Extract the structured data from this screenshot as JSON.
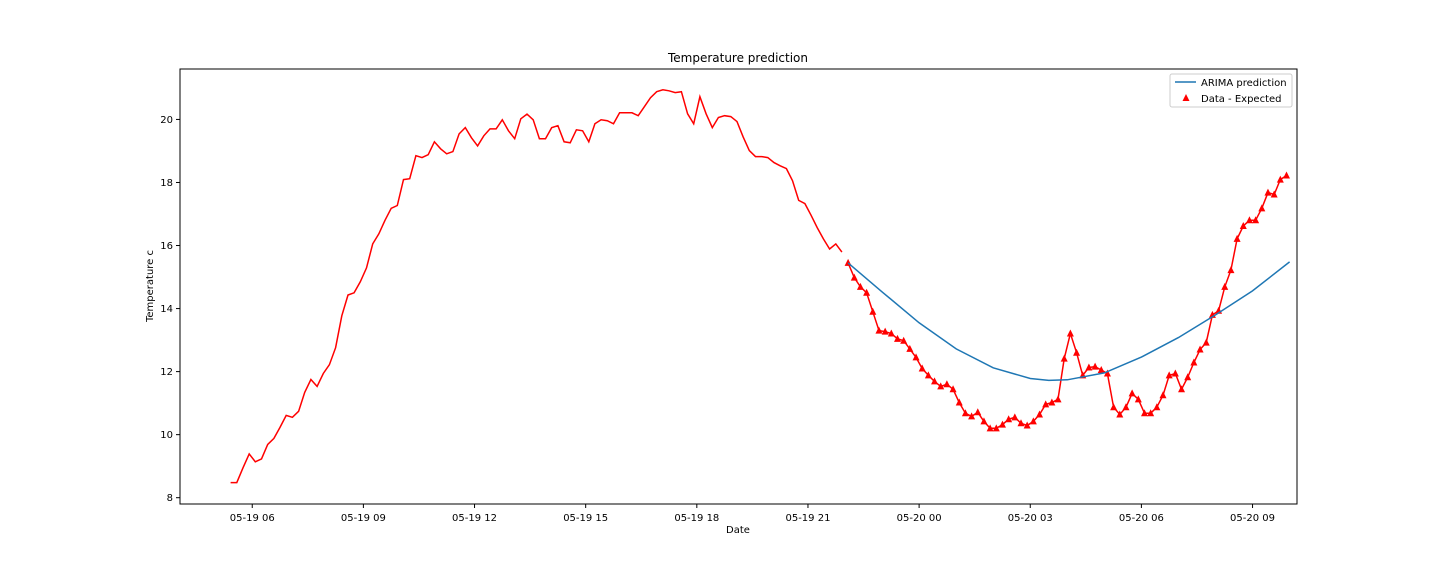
{
  "chart_data": {
    "type": "line",
    "title": "Temperature prediction",
    "xlabel": "Date",
    "ylabel": "Temperature c",
    "xlim": [
      "2024-05-19 04:03",
      "2024-05-20 10:12"
    ],
    "ylim": [
      7.8,
      21.6
    ],
    "x_ticks": [
      {
        "value": "2024-05-19 06:00",
        "label": "05-19 06"
      },
      {
        "value": "2024-05-19 09:00",
        "label": "05-19 09"
      },
      {
        "value": "2024-05-19 12:00",
        "label": "05-19 12"
      },
      {
        "value": "2024-05-19 15:00",
        "label": "05-19 15"
      },
      {
        "value": "2024-05-19 18:00",
        "label": "05-19 18"
      },
      {
        "value": "2024-05-19 21:00",
        "label": "05-19 21"
      },
      {
        "value": "2024-05-20 00:00",
        "label": "05-20 00"
      },
      {
        "value": "2024-05-20 03:00",
        "label": "05-20 03"
      },
      {
        "value": "2024-05-20 06:00",
        "label": "05-20 06"
      },
      {
        "value": "2024-05-20 09:00",
        "label": "05-20 09"
      }
    ],
    "y_ticks": [
      8,
      10,
      12,
      14,
      16,
      18,
      20
    ],
    "grid": false,
    "legend_position": "top-right",
    "series": [
      {
        "name": "",
        "kind": "line",
        "color": "#ff0000",
        "points": [
          [
            "2024-05-19 05:25",
            8.48
          ],
          [
            "2024-05-19 05:35",
            8.48
          ],
          [
            "2024-05-19 05:45",
            8.95
          ],
          [
            "2024-05-19 05:55",
            9.39
          ],
          [
            "2024-05-19 06:05",
            9.14
          ],
          [
            "2024-05-19 06:15",
            9.23
          ],
          [
            "2024-05-19 06:25",
            9.69
          ],
          [
            "2024-05-19 06:35",
            9.88
          ],
          [
            "2024-05-19 06:45",
            10.23
          ],
          [
            "2024-05-19 06:55",
            10.61
          ],
          [
            "2024-05-19 07:05",
            10.55
          ],
          [
            "2024-05-19 07:15",
            10.74
          ],
          [
            "2024-05-19 07:25",
            11.34
          ],
          [
            "2024-05-19 07:35",
            11.75
          ],
          [
            "2024-05-19 07:45",
            11.53
          ],
          [
            "2024-05-19 07:55",
            11.94
          ],
          [
            "2024-05-19 08:05",
            12.22
          ],
          [
            "2024-05-19 08:15",
            12.76
          ],
          [
            "2024-05-19 08:25",
            13.77
          ],
          [
            "2024-05-19 08:35",
            14.43
          ],
          [
            "2024-05-19 08:45",
            14.5
          ],
          [
            "2024-05-19 08:55",
            14.85
          ],
          [
            "2024-05-19 09:05",
            15.29
          ],
          [
            "2024-05-19 09:15",
            16.05
          ],
          [
            "2024-05-19 09:25",
            16.37
          ],
          [
            "2024-05-19 09:35",
            16.8
          ],
          [
            "2024-05-19 09:45",
            17.18
          ],
          [
            "2024-05-19 09:55",
            17.27
          ],
          [
            "2024-05-19 10:05",
            18.09
          ],
          [
            "2024-05-19 10:15",
            18.12
          ],
          [
            "2024-05-19 10:25",
            18.85
          ],
          [
            "2024-05-19 10:35",
            18.79
          ],
          [
            "2024-05-19 10:45",
            18.88
          ],
          [
            "2024-05-19 10:55",
            19.29
          ],
          [
            "2024-05-19 11:05",
            19.07
          ],
          [
            "2024-05-19 11:15",
            18.91
          ],
          [
            "2024-05-19 11:25",
            18.98
          ],
          [
            "2024-05-19 11:35",
            19.54
          ],
          [
            "2024-05-19 11:45",
            19.74
          ],
          [
            "2024-05-19 11:55",
            19.42
          ],
          [
            "2024-05-19 12:05",
            19.16
          ],
          [
            "2024-05-19 12:15",
            19.48
          ],
          [
            "2024-05-19 12:25",
            19.7
          ],
          [
            "2024-05-19 12:35",
            19.7
          ],
          [
            "2024-05-19 12:45",
            19.99
          ],
          [
            "2024-05-19 12:55",
            19.64
          ],
          [
            "2024-05-19 13:05",
            19.39
          ],
          [
            "2024-05-19 13:15",
            20.02
          ],
          [
            "2024-05-19 13:25",
            20.17
          ],
          [
            "2024-05-19 13:35",
            19.99
          ],
          [
            "2024-05-19 13:45",
            19.39
          ],
          [
            "2024-05-19 13:55",
            19.39
          ],
          [
            "2024-05-19 14:05",
            19.74
          ],
          [
            "2024-05-19 14:15",
            19.8
          ],
          [
            "2024-05-19 14:25",
            19.29
          ],
          [
            "2024-05-19 14:35",
            19.26
          ],
          [
            "2024-05-19 14:45",
            19.67
          ],
          [
            "2024-05-19 14:55",
            19.64
          ],
          [
            "2024-05-19 15:05",
            19.29
          ],
          [
            "2024-05-19 15:15",
            19.86
          ],
          [
            "2024-05-19 15:25",
            19.99
          ],
          [
            "2024-05-19 15:35",
            19.96
          ],
          [
            "2024-05-19 15:45",
            19.86
          ],
          [
            "2024-05-19 15:55",
            20.21
          ],
          [
            "2024-05-19 16:05",
            20.21
          ],
          [
            "2024-05-19 16:15",
            20.21
          ],
          [
            "2024-05-19 16:25",
            20.12
          ],
          [
            "2024-05-19 16:35",
            20.4
          ],
          [
            "2024-05-19 16:45",
            20.69
          ],
          [
            "2024-05-19 16:55",
            20.88
          ],
          [
            "2024-05-19 17:05",
            20.94
          ],
          [
            "2024-05-19 17:15",
            20.91
          ],
          [
            "2024-05-19 17:25",
            20.85
          ],
          [
            "2024-05-19 17:35",
            20.88
          ],
          [
            "2024-05-19 17:45",
            20.18
          ],
          [
            "2024-05-19 17:55",
            19.86
          ],
          [
            "2024-05-19 18:05",
            20.72
          ],
          [
            "2024-05-19 18:15",
            20.18
          ],
          [
            "2024-05-19 18:25",
            19.74
          ],
          [
            "2024-05-19 18:35",
            20.06
          ],
          [
            "2024-05-19 18:45",
            20.12
          ],
          [
            "2024-05-19 18:55",
            20.09
          ],
          [
            "2024-05-19 19:05",
            19.93
          ],
          [
            "2024-05-19 19:15",
            19.45
          ],
          [
            "2024-05-19 19:25",
            19.01
          ],
          [
            "2024-05-19 19:35",
            18.82
          ],
          [
            "2024-05-19 19:45",
            18.82
          ],
          [
            "2024-05-19 19:55",
            18.79
          ],
          [
            "2024-05-19 20:05",
            18.63
          ],
          [
            "2024-05-19 20:15",
            18.53
          ],
          [
            "2024-05-19 20:25",
            18.44
          ],
          [
            "2024-05-19 20:35",
            18.06
          ],
          [
            "2024-05-19 20:45",
            17.43
          ],
          [
            "2024-05-19 20:55",
            17.33
          ],
          [
            "2024-05-19 21:05",
            16.96
          ],
          [
            "2024-05-19 21:15",
            16.57
          ],
          [
            "2024-05-19 21:25",
            16.21
          ],
          [
            "2024-05-19 21:35",
            15.89
          ],
          [
            "2024-05-19 21:45",
            16.05
          ],
          [
            "2024-05-19 21:55",
            15.79
          ]
        ]
      },
      {
        "name": "Data - Expected",
        "kind": "line+markers",
        "color": "#ff0000",
        "marker": "triangle",
        "points": [
          [
            "2024-05-19 22:05",
            15.45
          ],
          [
            "2024-05-19 22:15",
            14.98
          ],
          [
            "2024-05-19 22:25",
            14.69
          ],
          [
            "2024-05-19 22:35",
            14.5
          ],
          [
            "2024-05-19 22:45",
            13.9
          ],
          [
            "2024-05-19 22:55",
            13.3
          ],
          [
            "2024-05-19 23:05",
            13.27
          ],
          [
            "2024-05-19 23:15",
            13.21
          ],
          [
            "2024-05-19 23:25",
            13.04
          ],
          [
            "2024-05-19 23:35",
            12.98
          ],
          [
            "2024-05-19 23:45",
            12.72
          ],
          [
            "2024-05-19 23:55",
            12.45
          ],
          [
            "2024-05-20 00:05",
            12.1
          ],
          [
            "2024-05-20 00:15",
            11.88
          ],
          [
            "2024-05-20 00:25",
            11.69
          ],
          [
            "2024-05-20 00:35",
            11.53
          ],
          [
            "2024-05-20 00:45",
            11.6
          ],
          [
            "2024-05-20 00:55",
            11.44
          ],
          [
            "2024-05-20 01:05",
            11.02
          ],
          [
            "2024-05-20 01:15",
            10.68
          ],
          [
            "2024-05-20 01:25",
            10.58
          ],
          [
            "2024-05-20 01:35",
            10.71
          ],
          [
            "2024-05-20 01:45",
            10.42
          ],
          [
            "2024-05-20 01:55",
            10.2
          ],
          [
            "2024-05-20 02:05",
            10.2
          ],
          [
            "2024-05-20 02:15",
            10.32
          ],
          [
            "2024-05-20 02:25",
            10.49
          ],
          [
            "2024-05-20 02:35",
            10.55
          ],
          [
            "2024-05-20 02:45",
            10.36
          ],
          [
            "2024-05-20 02:55",
            10.29
          ],
          [
            "2024-05-20 03:05",
            10.42
          ],
          [
            "2024-05-20 03:15",
            10.64
          ],
          [
            "2024-05-20 03:25",
            10.96
          ],
          [
            "2024-05-20 03:35",
            11.02
          ],
          [
            "2024-05-20 03:45",
            11.12
          ],
          [
            "2024-05-20 03:55",
            12.41
          ],
          [
            "2024-05-20 04:05",
            13.21
          ],
          [
            "2024-05-20 04:15",
            12.6
          ],
          [
            "2024-05-20 04:25",
            11.88
          ],
          [
            "2024-05-20 04:35",
            12.13
          ],
          [
            "2024-05-20 04:45",
            12.16
          ],
          [
            "2024-05-20 04:55",
            12.05
          ],
          [
            "2024-05-20 05:05",
            11.94
          ],
          [
            "2024-05-20 05:15",
            10.87
          ],
          [
            "2024-05-20 05:25",
            10.64
          ],
          [
            "2024-05-20 05:35",
            10.87
          ],
          [
            "2024-05-20 05:45",
            11.31
          ],
          [
            "2024-05-20 05:55",
            11.12
          ],
          [
            "2024-05-20 06:05",
            10.68
          ],
          [
            "2024-05-20 06:15",
            10.68
          ],
          [
            "2024-05-20 06:25",
            10.87
          ],
          [
            "2024-05-20 06:35",
            11.25
          ],
          [
            "2024-05-20 06:45",
            11.88
          ],
          [
            "2024-05-20 06:55",
            11.94
          ],
          [
            "2024-05-20 07:05",
            11.44
          ],
          [
            "2024-05-20 07:15",
            11.82
          ],
          [
            "2024-05-20 07:25",
            12.29
          ],
          [
            "2024-05-20 07:35",
            12.7
          ],
          [
            "2024-05-20 07:45",
            12.92
          ],
          [
            "2024-05-20 07:55",
            13.8
          ],
          [
            "2024-05-20 08:05",
            13.93
          ],
          [
            "2024-05-20 08:15",
            14.69
          ],
          [
            "2024-05-20 08:25",
            15.22
          ],
          [
            "2024-05-20 08:35",
            16.21
          ],
          [
            "2024-05-20 08:45",
            16.62
          ],
          [
            "2024-05-20 08:55",
            16.8
          ],
          [
            "2024-05-20 09:05",
            16.8
          ],
          [
            "2024-05-20 09:15",
            17.18
          ],
          [
            "2024-05-20 09:25",
            17.68
          ],
          [
            "2024-05-20 09:35",
            17.62
          ],
          [
            "2024-05-20 09:45",
            18.09
          ],
          [
            "2024-05-20 09:55",
            18.22
          ]
        ]
      },
      {
        "name": "ARIMA prediction",
        "kind": "line",
        "color": "#1f77b4",
        "points": [
          [
            "2024-05-19 22:05",
            15.45
          ],
          [
            "2024-05-19 23:00",
            14.53
          ],
          [
            "2024-05-20 00:00",
            13.55
          ],
          [
            "2024-05-20 01:00",
            12.72
          ],
          [
            "2024-05-20 02:00",
            12.12
          ],
          [
            "2024-05-20 03:00",
            11.78
          ],
          [
            "2024-05-20 03:30",
            11.72
          ],
          [
            "2024-05-20 04:00",
            11.74
          ],
          [
            "2024-05-20 05:00",
            11.96
          ],
          [
            "2024-05-20 06:00",
            12.46
          ],
          [
            "2024-05-20 07:00",
            13.08
          ],
          [
            "2024-05-20 08:00",
            13.8
          ],
          [
            "2024-05-20 09:00",
            14.56
          ],
          [
            "2024-05-20 10:00",
            15.48
          ]
        ]
      }
    ],
    "legend": [
      "ARIMA prediction",
      "Data - Expected"
    ]
  }
}
